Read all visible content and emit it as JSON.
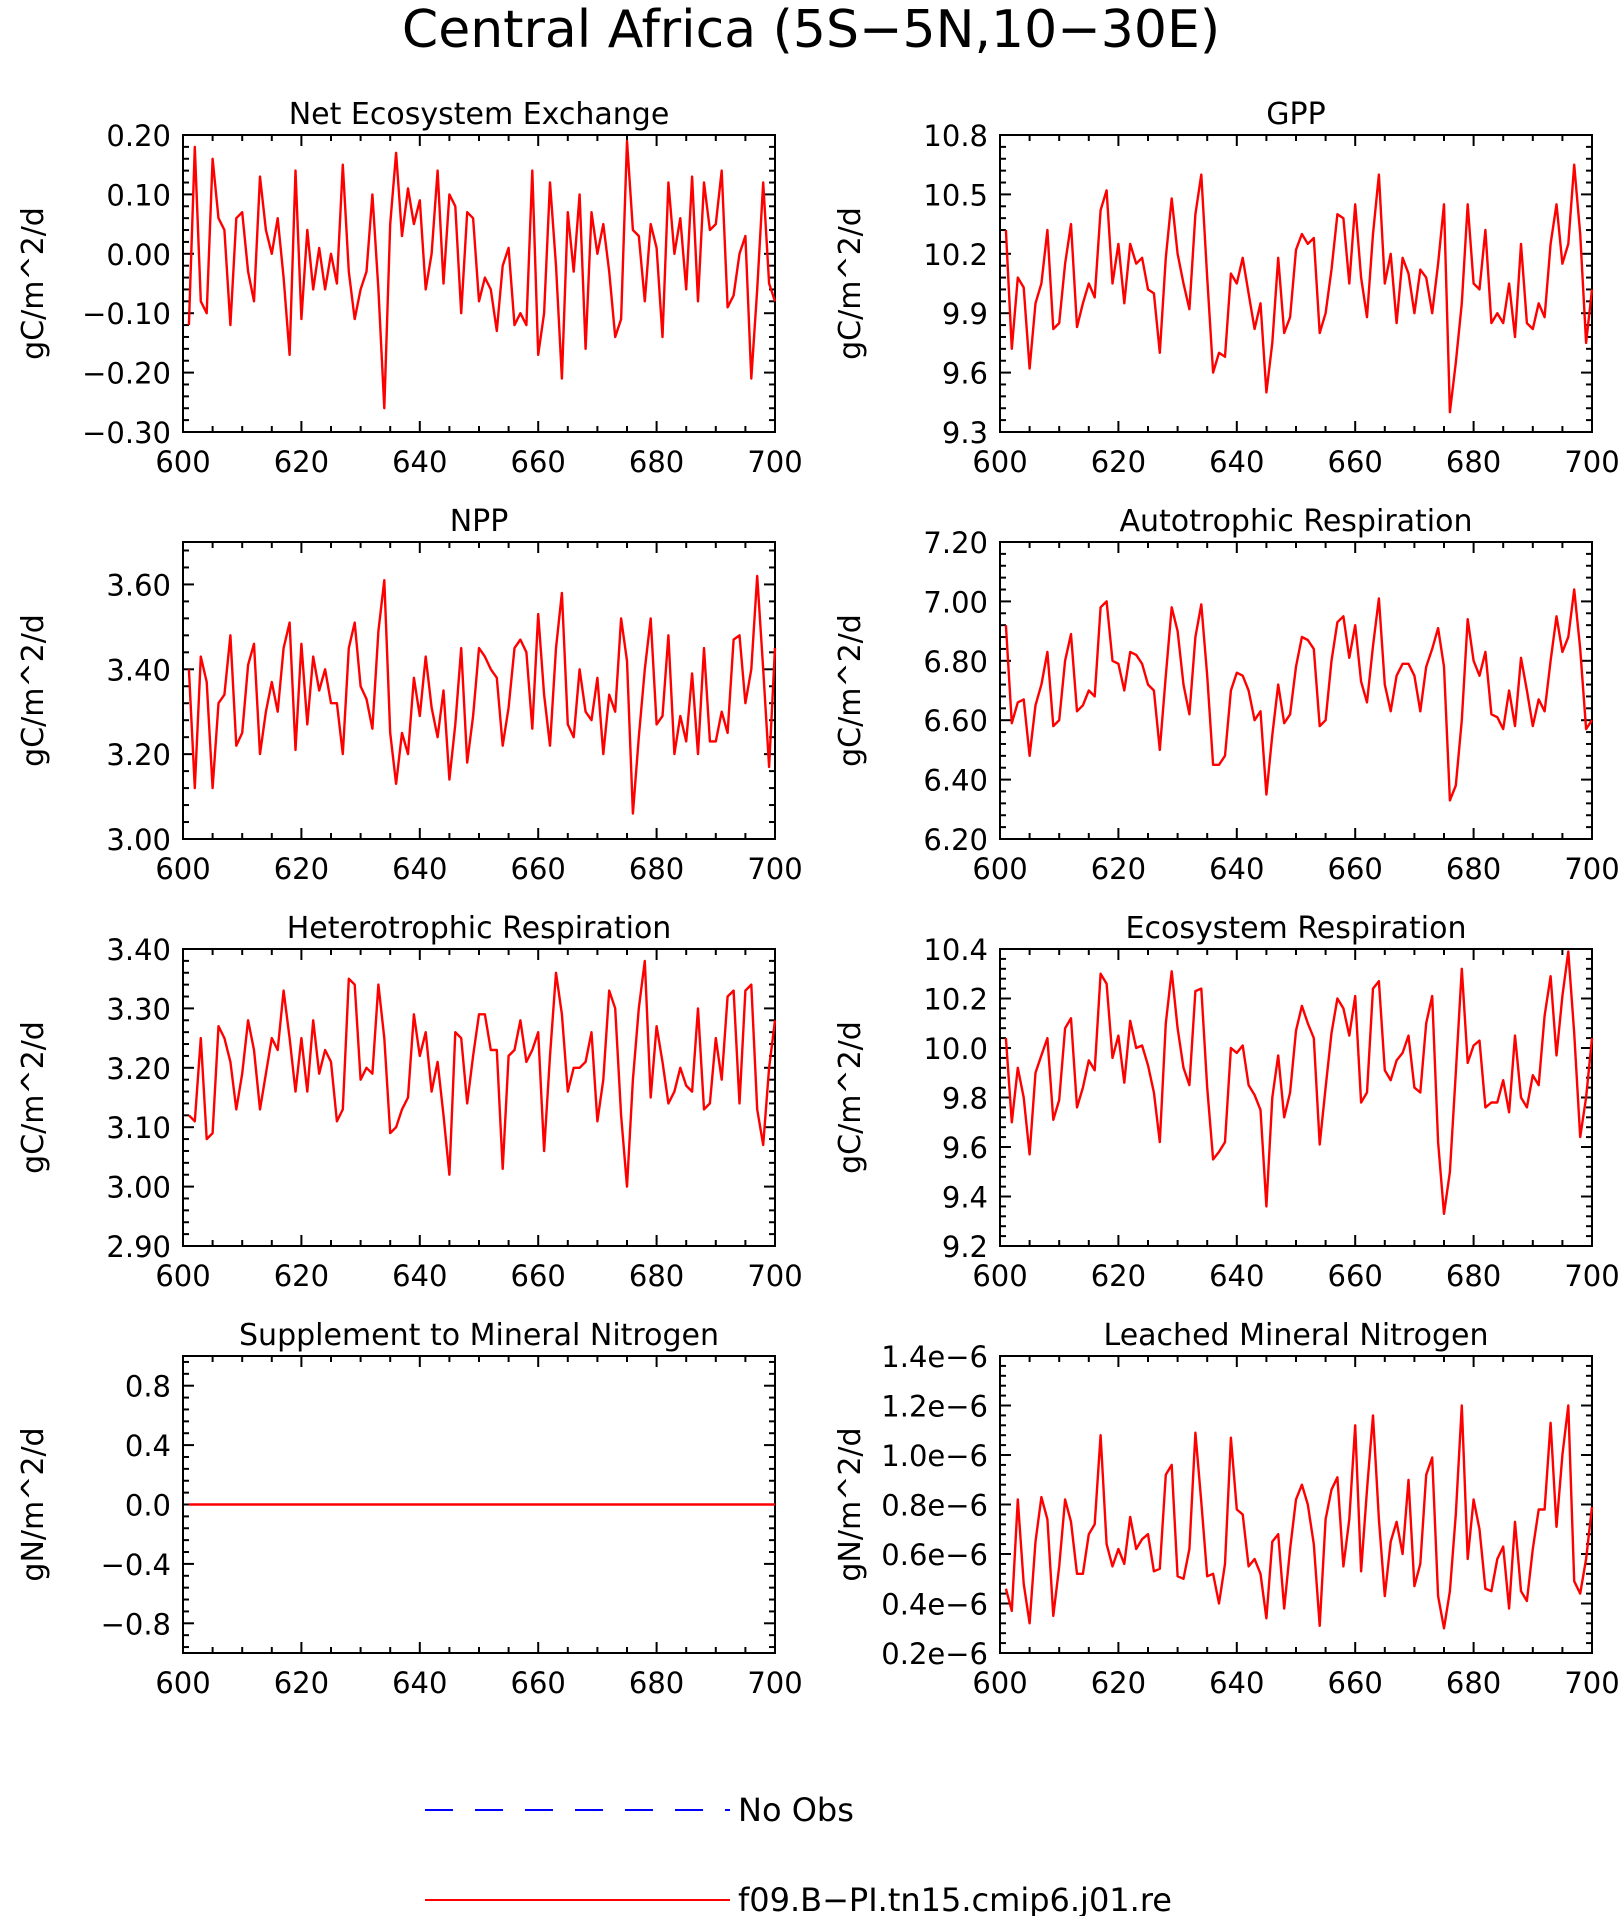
{
  "figure_title": "Central Africa (5S−5N,10−30E)",
  "legend": {
    "entries": [
      {
        "label": "No Obs",
        "color": "#0000ff",
        "style": "dashed"
      },
      {
        "label": "f09.B−PI.tn15.cmip6.j01.re",
        "color": "#ff0000",
        "style": "solid"
      }
    ]
  },
  "colors": {
    "model_line": "#ff0000",
    "obs_line": "#0000ff"
  },
  "chart_data": [
    {
      "type": "line",
      "title": "Net Ecosystem Exchange",
      "ylabel": "gC/m^2/d",
      "xlim": [
        600,
        700
      ],
      "ylim": [
        -0.3,
        0.2
      ],
      "xticks": [
        600,
        620,
        640,
        660,
        680,
        700
      ],
      "yticks": [
        -0.3,
        -0.2,
        -0.1,
        0.0,
        0.1,
        0.2
      ],
      "ytick_labels": [
        "−0.30",
        "−0.20",
        "−0.10",
        "0.00",
        "0.10",
        "0.20"
      ],
      "series": [
        {
          "name": "f09.B−PI.tn15.cmip6.j01.re",
          "x_start": 601,
          "x_step": 1,
          "values": [
            -0.12,
            0.18,
            -0.08,
            -0.1,
            0.16,
            0.06,
            0.04,
            -0.12,
            0.06,
            0.07,
            -0.03,
            -0.08,
            0.13,
            0.04,
            0.0,
            0.06,
            -0.04,
            -0.17,
            0.14,
            -0.11,
            0.04,
            -0.06,
            0.01,
            -0.06,
            0.0,
            -0.05,
            0.15,
            -0.03,
            -0.11,
            -0.06,
            -0.03,
            0.1,
            -0.06,
            -0.26,
            0.05,
            0.17,
            0.03,
            0.11,
            0.05,
            0.09,
            -0.06,
            0.0,
            0.14,
            -0.05,
            0.1,
            0.08,
            -0.1,
            0.07,
            0.06,
            -0.08,
            -0.04,
            -0.06,
            -0.13,
            -0.02,
            0.01,
            -0.12,
            -0.1,
            -0.12,
            0.14,
            -0.17,
            -0.1,
            0.12,
            -0.02,
            -0.21,
            0.07,
            -0.03,
            0.1,
            -0.16,
            0.07,
            0.0,
            0.05,
            -0.03,
            -0.14,
            -0.11,
            0.19,
            0.04,
            0.03,
            -0.08,
            0.05,
            0.01,
            -0.14,
            0.12,
            0.0,
            0.06,
            -0.06,
            0.13,
            -0.08,
            0.12,
            0.04,
            0.05,
            0.14,
            -0.09,
            -0.07,
            0.0,
            0.03,
            -0.21,
            -0.06,
            0.12,
            -0.05,
            -0.08
          ]
        }
      ]
    },
    {
      "type": "line",
      "title": "GPP",
      "ylabel": "gC/m^2/d",
      "xlim": [
        600,
        700
      ],
      "ylim": [
        9.3,
        10.8
      ],
      "xticks": [
        600,
        620,
        640,
        660,
        680,
        700
      ],
      "yticks": [
        9.3,
        9.6,
        9.9,
        10.2,
        10.5,
        10.8
      ],
      "ytick_labels": [
        "9.3",
        "9.6",
        "9.9",
        "10.2",
        "10.5",
        "10.8"
      ],
      "series": [
        {
          "name": "f09.B−PI.tn15.cmip6.j01.re",
          "x_start": 601,
          "x_step": 1,
          "values": [
            10.32,
            9.72,
            10.08,
            10.03,
            9.62,
            9.95,
            10.05,
            10.32,
            9.82,
            9.85,
            10.15,
            10.35,
            9.83,
            9.95,
            10.05,
            9.98,
            10.42,
            10.52,
            10.05,
            10.25,
            9.95,
            10.25,
            10.15,
            10.18,
            10.02,
            10.0,
            9.7,
            10.18,
            10.48,
            10.2,
            10.05,
            9.92,
            10.4,
            10.6,
            10.08,
            9.6,
            9.7,
            9.68,
            10.1,
            10.05,
            10.18,
            10.0,
            9.82,
            9.95,
            9.5,
            9.75,
            10.18,
            9.8,
            9.88,
            10.22,
            10.3,
            10.25,
            10.28,
            9.8,
            9.9,
            10.12,
            10.4,
            10.38,
            10.05,
            10.45,
            10.08,
            9.88,
            10.3,
            10.6,
            10.05,
            10.2,
            9.85,
            10.18,
            10.1,
            9.9,
            10.12,
            10.08,
            9.9,
            10.15,
            10.45,
            9.4,
            9.65,
            9.95,
            10.45,
            10.05,
            10.02,
            10.32,
            9.85,
            9.9,
            9.85,
            10.05,
            9.78,
            10.25,
            9.85,
            9.82,
            9.95,
            9.88,
            10.25,
            10.45,
            10.15,
            10.25,
            10.65,
            10.3,
            9.75,
            10.02
          ]
        }
      ]
    },
    {
      "type": "line",
      "title": "NPP",
      "ylabel": "gC/m^2/d",
      "xlim": [
        600,
        700
      ],
      "ylim": [
        3.0,
        3.7
      ],
      "xticks": [
        600,
        620,
        640,
        660,
        680,
        700
      ],
      "yticks": [
        3.0,
        3.2,
        3.4,
        3.6
      ],
      "ytick_labels": [
        "3.00",
        "3.20",
        "3.40",
        "3.60"
      ],
      "series": [
        {
          "name": "f09.B−PI.tn15.cmip6.j01.re",
          "x_start": 601,
          "x_step": 1,
          "values": [
            3.4,
            3.12,
            3.43,
            3.37,
            3.12,
            3.32,
            3.34,
            3.48,
            3.22,
            3.25,
            3.41,
            3.46,
            3.2,
            3.3,
            3.37,
            3.3,
            3.45,
            3.51,
            3.21,
            3.46,
            3.27,
            3.43,
            3.35,
            3.4,
            3.32,
            3.32,
            3.2,
            3.45,
            3.51,
            3.36,
            3.33,
            3.26,
            3.49,
            3.61,
            3.25,
            3.13,
            3.25,
            3.2,
            3.38,
            3.29,
            3.43,
            3.31,
            3.24,
            3.35,
            3.14,
            3.27,
            3.45,
            3.18,
            3.29,
            3.45,
            3.43,
            3.4,
            3.38,
            3.22,
            3.31,
            3.45,
            3.47,
            3.44,
            3.26,
            3.53,
            3.34,
            3.22,
            3.45,
            3.58,
            3.27,
            3.24,
            3.4,
            3.3,
            3.28,
            3.38,
            3.2,
            3.34,
            3.3,
            3.52,
            3.42,
            3.06,
            3.24,
            3.4,
            3.52,
            3.27,
            3.29,
            3.48,
            3.2,
            3.29,
            3.23,
            3.39,
            3.2,
            3.45,
            3.23,
            3.23,
            3.3,
            3.25,
            3.47,
            3.48,
            3.32,
            3.4,
            3.62,
            3.4,
            3.17,
            3.45
          ]
        }
      ]
    },
    {
      "type": "line",
      "title": "Autotrophic Respiration",
      "ylabel": "gC/m^2/d",
      "xlim": [
        600,
        700
      ],
      "ylim": [
        6.2,
        7.2
      ],
      "xticks": [
        600,
        620,
        640,
        660,
        680,
        700
      ],
      "yticks": [
        6.2,
        6.4,
        6.6,
        6.8,
        7.0,
        7.2
      ],
      "ytick_labels": [
        "6.20",
        "6.40",
        "6.60",
        "6.80",
        "7.00",
        "7.20"
      ],
      "series": [
        {
          "name": "f09.B−PI.tn15.cmip6.j01.re",
          "x_start": 601,
          "x_step": 1,
          "values": [
            6.92,
            6.59,
            6.66,
            6.67,
            6.48,
            6.65,
            6.72,
            6.83,
            6.58,
            6.6,
            6.8,
            6.89,
            6.63,
            6.65,
            6.7,
            6.68,
            6.98,
            7.0,
            6.8,
            6.79,
            6.7,
            6.83,
            6.82,
            6.79,
            6.72,
            6.7,
            6.5,
            6.75,
            6.98,
            6.9,
            6.72,
            6.62,
            6.88,
            6.99,
            6.75,
            6.45,
            6.45,
            6.48,
            6.7,
            6.76,
            6.75,
            6.7,
            6.6,
            6.63,
            6.35,
            6.55,
            6.72,
            6.59,
            6.62,
            6.78,
            6.88,
            6.87,
            6.84,
            6.58,
            6.6,
            6.8,
            6.93,
            6.95,
            6.81,
            6.92,
            6.73,
            6.66,
            6.85,
            7.01,
            6.72,
            6.63,
            6.75,
            6.79,
            6.79,
            6.75,
            6.63,
            6.78,
            6.84,
            6.91,
            6.78,
            6.33,
            6.38,
            6.6,
            6.94,
            6.8,
            6.75,
            6.83,
            6.62,
            6.61,
            6.57,
            6.7,
            6.58,
            6.81,
            6.7,
            6.58,
            6.67,
            6.63,
            6.8,
            6.95,
            6.83,
            6.88,
            7.04,
            6.84,
            6.57,
            6.6
          ]
        }
      ]
    },
    {
      "type": "line",
      "title": "Heterotrophic Respiration",
      "ylabel": "gC/m^2/d",
      "xlim": [
        600,
        700
      ],
      "ylim": [
        2.9,
        3.4
      ],
      "xticks": [
        600,
        620,
        640,
        660,
        680,
        700
      ],
      "yticks": [
        2.9,
        3.0,
        3.1,
        3.2,
        3.3,
        3.4
      ],
      "ytick_labels": [
        "2.90",
        "3.00",
        "3.10",
        "3.20",
        "3.30",
        "3.40"
      ],
      "series": [
        {
          "name": "f09.B−PI.tn15.cmip6.j01.re",
          "x_start": 601,
          "x_step": 1,
          "values": [
            3.12,
            3.11,
            3.25,
            3.08,
            3.09,
            3.27,
            3.25,
            3.21,
            3.13,
            3.19,
            3.28,
            3.23,
            3.13,
            3.19,
            3.25,
            3.23,
            3.33,
            3.25,
            3.16,
            3.25,
            3.16,
            3.28,
            3.19,
            3.23,
            3.21,
            3.11,
            3.13,
            3.35,
            3.34,
            3.18,
            3.2,
            3.19,
            3.34,
            3.25,
            3.09,
            3.1,
            3.13,
            3.15,
            3.29,
            3.22,
            3.26,
            3.16,
            3.21,
            3.12,
            3.02,
            3.26,
            3.25,
            3.14,
            3.22,
            3.29,
            3.29,
            3.23,
            3.23,
            3.03,
            3.22,
            3.23,
            3.28,
            3.21,
            3.23,
            3.26,
            3.06,
            3.22,
            3.36,
            3.29,
            3.16,
            3.2,
            3.2,
            3.21,
            3.26,
            3.11,
            3.18,
            3.33,
            3.3,
            3.12,
            3.0,
            3.18,
            3.3,
            3.38,
            3.15,
            3.27,
            3.21,
            3.14,
            3.16,
            3.2,
            3.17,
            3.16,
            3.3,
            3.13,
            3.14,
            3.25,
            3.18,
            3.32,
            3.33,
            3.14,
            3.33,
            3.34,
            3.13,
            3.07,
            3.2,
            3.28
          ]
        }
      ]
    },
    {
      "type": "line",
      "title": "Ecosystem Respiration",
      "ylabel": "gC/m^2/d",
      "xlim": [
        600,
        700
      ],
      "ylim": [
        9.2,
        10.4
      ],
      "xticks": [
        600,
        620,
        640,
        660,
        680,
        700
      ],
      "yticks": [
        9.2,
        9.4,
        9.6,
        9.8,
        10.0,
        10.2,
        10.4
      ],
      "ytick_labels": [
        "9.2",
        "9.4",
        "9.6",
        "9.8",
        "10.0",
        "10.2",
        "10.4"
      ],
      "series": [
        {
          "name": "f09.B−PI.tn15.cmip6.j01.re",
          "x_start": 601,
          "x_step": 1,
          "values": [
            10.04,
            9.7,
            9.92,
            9.8,
            9.57,
            9.9,
            9.97,
            10.04,
            9.71,
            9.79,
            10.08,
            10.12,
            9.76,
            9.84,
            9.95,
            9.91,
            10.3,
            10.26,
            9.96,
            10.05,
            9.86,
            10.11,
            10.0,
            10.01,
            9.93,
            9.82,
            9.62,
            10.1,
            10.31,
            10.08,
            9.92,
            9.85,
            10.23,
            10.24,
            9.84,
            9.55,
            9.58,
            9.62,
            10.0,
            9.98,
            10.01,
            9.85,
            9.81,
            9.75,
            9.36,
            9.8,
            9.97,
            9.72,
            9.82,
            10.07,
            10.17,
            10.1,
            10.04,
            9.61,
            9.84,
            10.06,
            10.2,
            10.16,
            10.05,
            10.21,
            9.78,
            9.82,
            10.24,
            10.27,
            9.91,
            9.87,
            9.95,
            9.98,
            10.05,
            9.84,
            9.82,
            10.1,
            10.21,
            9.62,
            9.33,
            9.5,
            9.9,
            10.32,
            9.94,
            10.01,
            10.03,
            9.76,
            9.78,
            9.78,
            9.87,
            9.74,
            10.05,
            9.8,
            9.76,
            9.89,
            9.85,
            10.13,
            10.29,
            9.97,
            10.21,
            10.39,
            10.06,
            9.64,
            9.8,
            10.04
          ]
        }
      ]
    },
    {
      "type": "line",
      "title": "Supplement to Mineral Nitrogen",
      "ylabel": "gN/m^2/d",
      "xlim": [
        600,
        700
      ],
      "ylim": [
        -1.0,
        1.0
      ],
      "xticks": [
        600,
        620,
        640,
        660,
        680,
        700
      ],
      "yticks": [
        -0.8,
        -0.4,
        0.0,
        0.4,
        0.8
      ],
      "ytick_labels": [
        "−0.8",
        "−0.4",
        "0.0",
        "0.4",
        "0.8"
      ],
      "series": [
        {
          "name": "f09.B−PI.tn15.cmip6.j01.re",
          "x": [
            601,
            700
          ],
          "values": [
            0.0,
            0.0
          ]
        }
      ]
    },
    {
      "type": "line",
      "title": "Leached Mineral Nitrogen",
      "ylabel": "gN/m^2/d",
      "xlim": [
        600,
        700
      ],
      "ylim": [
        2e-07,
        1.4e-06
      ],
      "xticks": [
        600,
        620,
        640,
        660,
        680,
        700
      ],
      "yticks": [
        2e-07,
        4e-07,
        6e-07,
        8e-07,
        1e-06,
        1.2e-06,
        1.4e-06
      ],
      "ytick_labels": [
        "0.2e−6",
        "0.4e−6",
        "0.6e−6",
        "0.8e−6",
        "1.0e−6",
        "1.2e−6",
        "1.4e−6"
      ],
      "series": [
        {
          "name": "f09.B−PI.tn15.cmip6.j01.re",
          "x_start": 601,
          "x_step": 1,
          "values": [
            4.6e-07,
            3.7e-07,
            8.2e-07,
            4.8e-07,
            3.2e-07,
            6.5e-07,
            8.3e-07,
            7.4e-07,
            3.5e-07,
            5.5e-07,
            8.2e-07,
            7.3e-07,
            5.2e-07,
            5.2e-07,
            6.8e-07,
            7.2e-07,
            1.08e-06,
            6.4e-07,
            5.5e-07,
            6.2e-07,
            5.6e-07,
            7.5e-07,
            6.2e-07,
            6.6e-07,
            6.8e-07,
            5.3e-07,
            5.4e-07,
            9.2e-07,
            9.6e-07,
            5.1e-07,
            5e-07,
            6.2e-07,
            1.09e-06,
            8.1e-07,
            5.1e-07,
            5.2e-07,
            4e-07,
            5.6e-07,
            1.07e-06,
            7.8e-07,
            7.6e-07,
            5.5e-07,
            5.8e-07,
            5.2e-07,
            3.4e-07,
            6.5e-07,
            6.8e-07,
            3.8e-07,
            6.2e-07,
            8.2e-07,
            8.8e-07,
            8e-07,
            6.4e-07,
            3.1e-07,
            7.4e-07,
            8.6e-07,
            9.1e-07,
            5.5e-07,
            7.4e-07,
            1.12e-06,
            5.3e-07,
            8.6e-07,
            1.16e-06,
            7.4e-07,
            4.3e-07,
            6.5e-07,
            7.3e-07,
            6e-07,
            9e-07,
            4.7e-07,
            5.6e-07,
            9.2e-07,
            9.9e-07,
            4.3e-07,
            3e-07,
            4.5e-07,
            7.6e-07,
            1.2e-06,
            5.8e-07,
            8.2e-07,
            7e-07,
            4.6e-07,
            4.5e-07,
            5.8e-07,
            6.3e-07,
            3.8e-07,
            7.3e-07,
            4.5e-07,
            4.1e-07,
            6.2e-07,
            7.8e-07,
            7.8e-07,
            1.13e-06,
            7.1e-07,
            1e-06,
            1.2e-06,
            4.9e-07,
            4.4e-07,
            5.8e-07,
            7.9e-07
          ]
        }
      ]
    }
  ]
}
